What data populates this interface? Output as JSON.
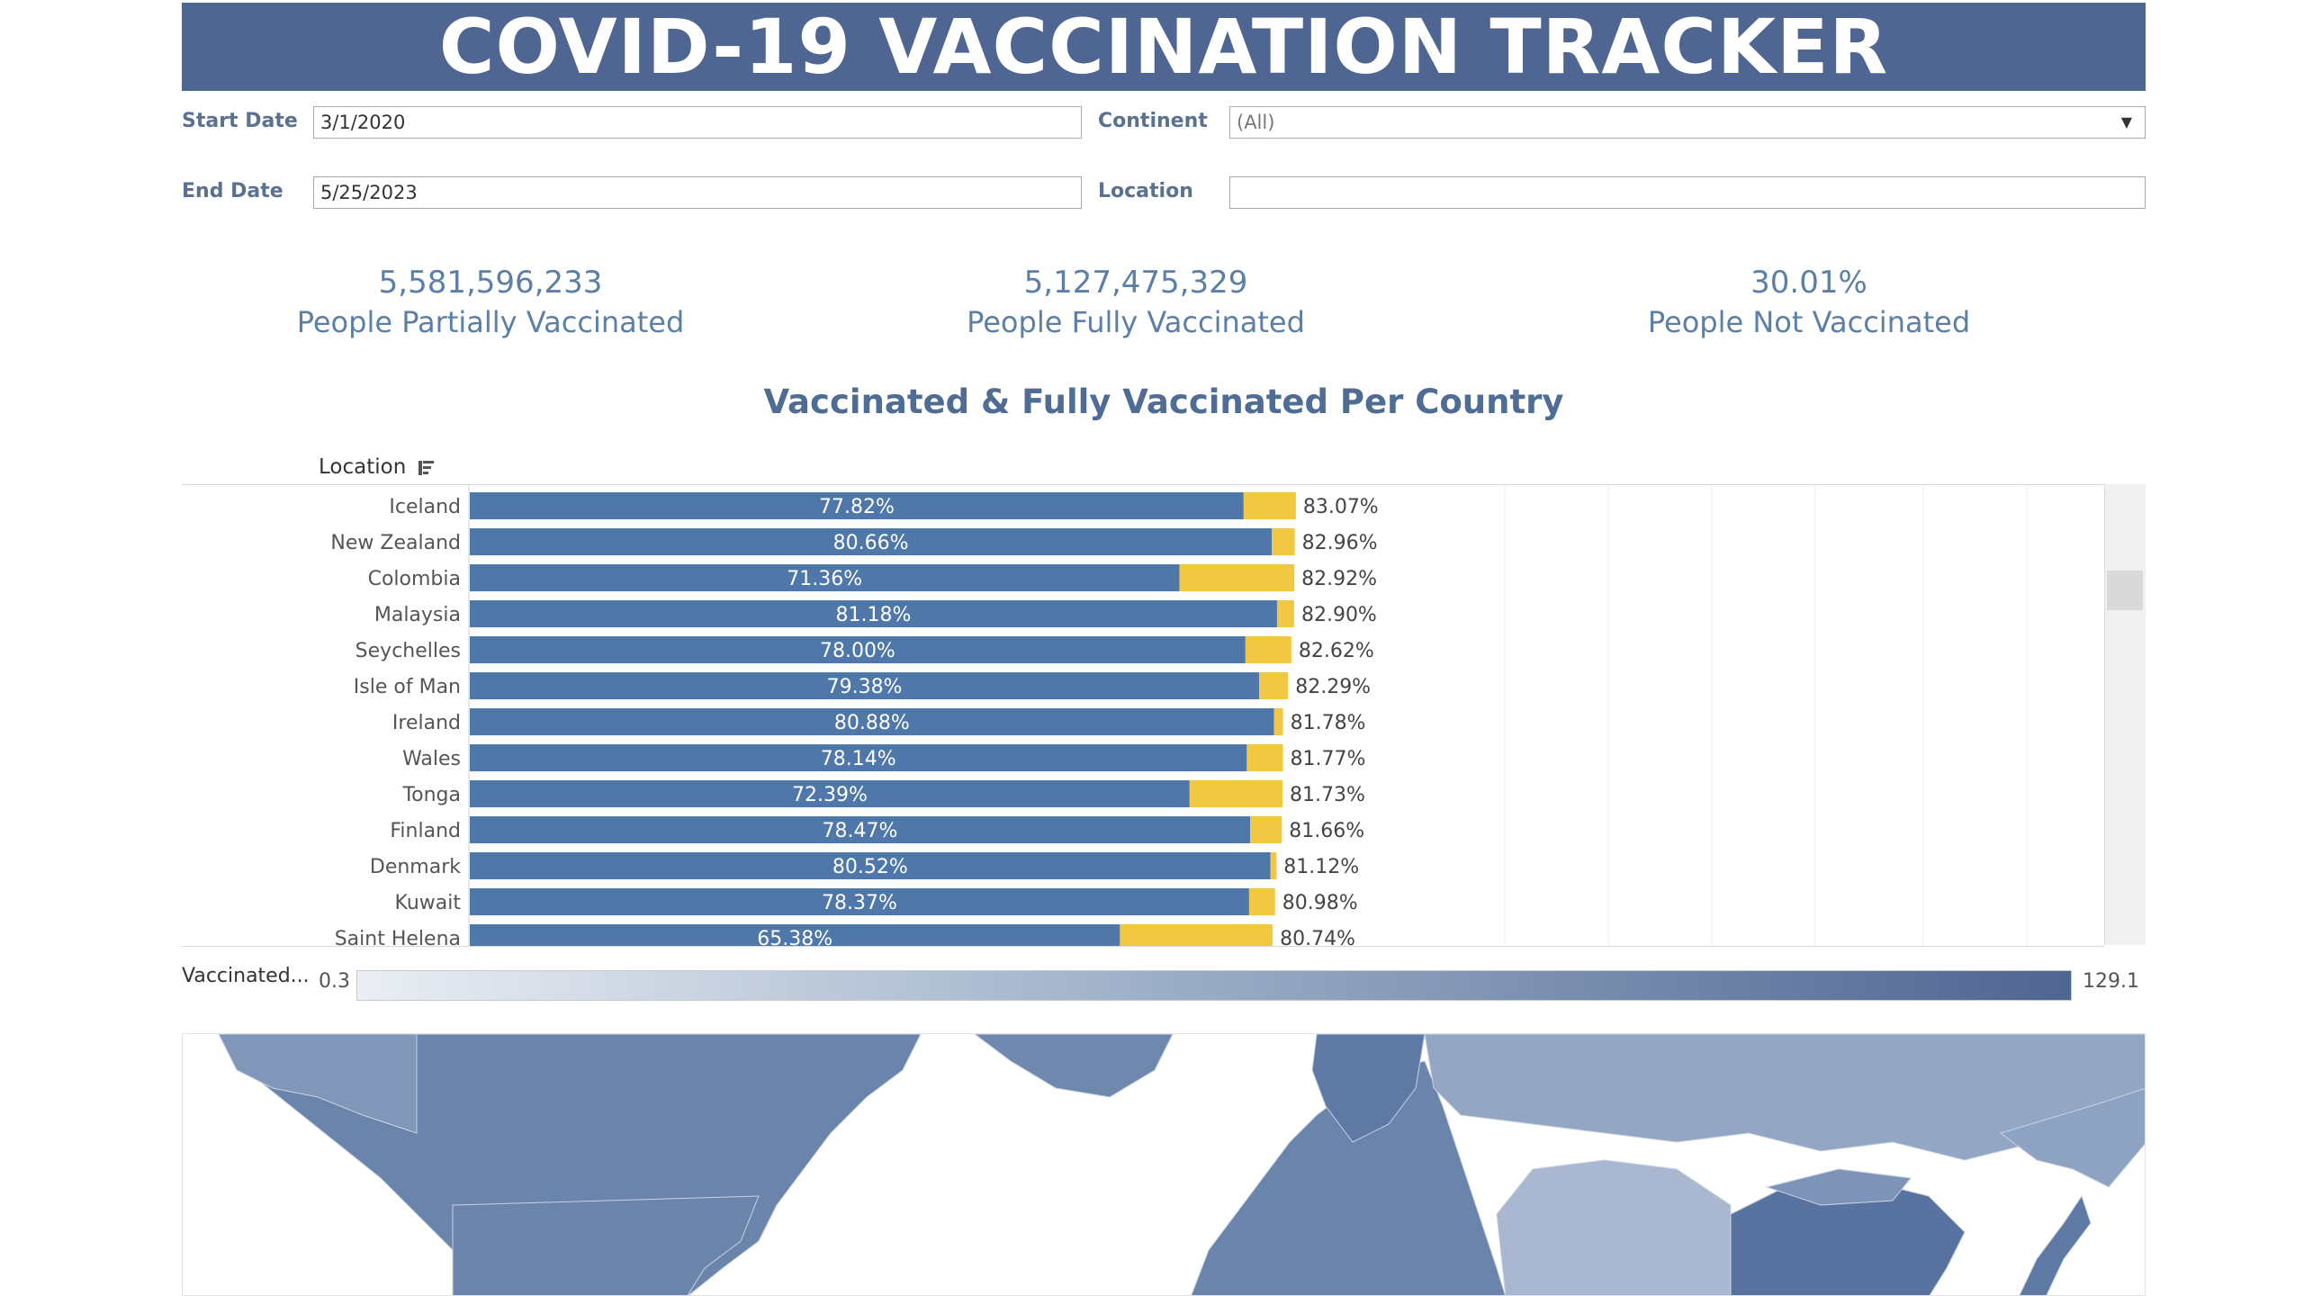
{
  "title": "COVID-19 VACCINATION TRACKER",
  "filters": {
    "start_date_label": "Start Date",
    "start_date_value": "3/1/2020",
    "end_date_label": "End Date",
    "end_date_value": "5/25/2023",
    "continent_label": "Continent",
    "continent_value": "(All)",
    "location_label": "Location",
    "location_value": ""
  },
  "kpis": [
    {
      "value": "5,581,596,233",
      "label": "People Partially Vaccinated"
    },
    {
      "value": "5,127,475,329",
      "label": "People Fully Vaccinated"
    },
    {
      "value": "30.01%",
      "label": "People Not Vaccinated"
    }
  ],
  "chart_title": "Vaccinated & Fully Vaccinated Per Country",
  "location_header": "Location",
  "colors": {
    "fully": "#4f77aa",
    "partial": "#f2c744",
    "banner": "#4f6592"
  },
  "chart_data": {
    "type": "bar",
    "categories": [
      "Iceland",
      "New Zealand",
      "Colombia",
      "Malaysia",
      "Seychelles",
      "Isle of Man",
      "Ireland",
      "Wales",
      "Tonga",
      "Finland",
      "Denmark",
      "Kuwait",
      "Saint Helena"
    ],
    "series": [
      {
        "values": [
          77.82,
          80.66,
          71.36,
          81.18,
          78.0,
          79.38,
          80.88,
          78.14,
          72.39,
          78.47,
          80.52,
          78.37,
          65.38
        ]
      },
      {
        "values": [
          83.07,
          82.96,
          82.92,
          82.9,
          82.62,
          82.29,
          81.78,
          81.77,
          81.73,
          81.66,
          81.12,
          80.98,
          80.74
        ]
      }
    ],
    "fully_labels": [
      "77.82%",
      "80.66%",
      "71.36%",
      "81.18%",
      "78.00%",
      "79.38%",
      "80.88%",
      "78.14%",
      "72.39%",
      "78.47%",
      "80.52%",
      "78.37%",
      "65.38%"
    ],
    "total_labels": [
      "83.07%",
      "82.96%",
      "82.92%",
      "82.90%",
      "82.62%",
      "82.29%",
      "81.78%",
      "81.77%",
      "81.73%",
      "81.66%",
      "81.12%",
      "80.98%",
      "80.74%"
    ],
    "xlim": [
      0,
      143
    ]
  },
  "legend": {
    "label": "Vaccinated...",
    "min": "0.3",
    "max": "129.1"
  },
  "map": {
    "name": "world-vaccination-map"
  }
}
